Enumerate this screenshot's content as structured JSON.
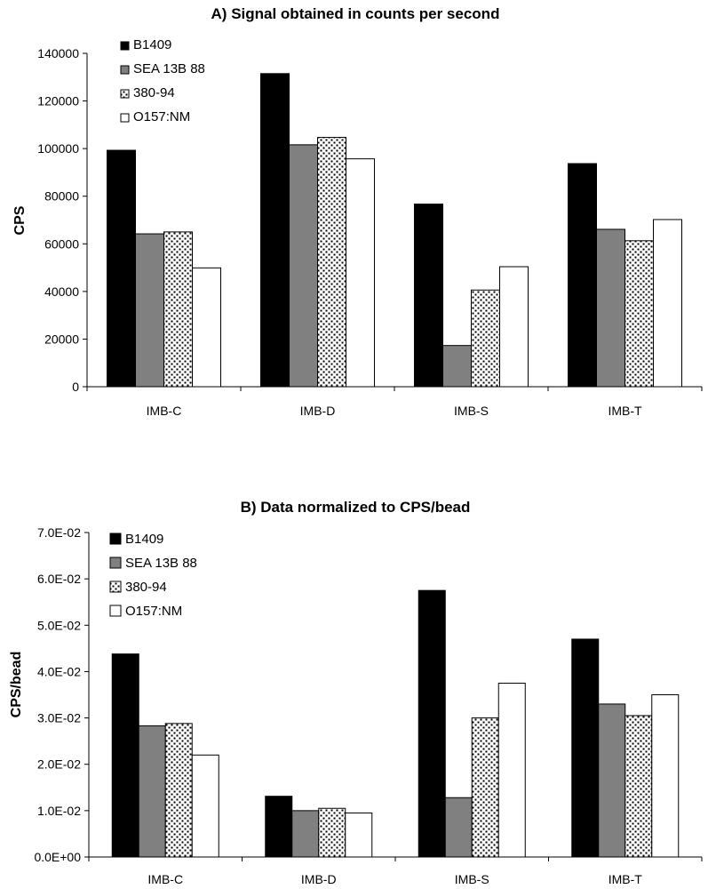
{
  "chart_data": [
    {
      "type": "bar",
      "title": "A) Signal obtained in counts per second",
      "xlabel": "",
      "ylabel": "CPS",
      "ylim": [
        0,
        140000
      ],
      "yticks": [
        0,
        20000,
        40000,
        60000,
        80000,
        100000,
        120000,
        140000
      ],
      "ytick_labels": [
        "0",
        "20000",
        "40000",
        "60000",
        "80000",
        "100000",
        "120000",
        "140000"
      ],
      "categories": [
        "IMB-C",
        "IMB-D",
        "IMB-S",
        "IMB-T"
      ],
      "legend_position": "top-left",
      "series": [
        {
          "name": "B1409",
          "style": "solid-black",
          "values": [
            99300,
            131500,
            76700,
            93700
          ]
        },
        {
          "name": "SEA 13B 88",
          "style": "solid-gray",
          "values": [
            64200,
            101600,
            17300,
            66100
          ]
        },
        {
          "name": "380-94",
          "style": "dotted",
          "values": [
            65000,
            104700,
            40600,
            61300
          ]
        },
        {
          "name": "O157:NM",
          "style": "white",
          "values": [
            49900,
            95700,
            50400,
            70200
          ]
        }
      ]
    },
    {
      "type": "bar",
      "title": "B) Data normalized to CPS/bead",
      "xlabel": "",
      "ylabel": "CPS/bead",
      "ylim": [
        0,
        0.07
      ],
      "yticks": [
        0,
        0.01,
        0.02,
        0.03,
        0.04,
        0.05,
        0.06,
        0.07
      ],
      "ytick_labels": [
        "0.0E+00",
        "1.0E-02",
        "2.0E-02",
        "3.0E-02",
        "4.0E-02",
        "5.0E-02",
        "6.0E-02",
        "7.0E-02"
      ],
      "categories": [
        "IMB-C",
        "IMB-D",
        "IMB-S",
        "IMB-T"
      ],
      "legend_position": "top-left",
      "series": [
        {
          "name": "B1409",
          "style": "solid-black",
          "values": [
            0.0438,
            0.0131,
            0.0575,
            0.047
          ]
        },
        {
          "name": "SEA 13B 88",
          "style": "solid-gray",
          "values": [
            0.0283,
            0.01,
            0.0128,
            0.033
          ]
        },
        {
          "name": "380-94",
          "style": "dotted",
          "values": [
            0.0288,
            0.0105,
            0.03,
            0.0305
          ]
        },
        {
          "name": "O157:NM",
          "style": "white",
          "values": [
            0.022,
            0.0095,
            0.0375,
            0.035
          ]
        }
      ]
    }
  ],
  "colors": {
    "solid-black": "#000000",
    "solid-gray": "#808080",
    "white": "#ffffff",
    "dot-bg": "#ffffff",
    "dot-fg": "#000000",
    "axis": "#000000"
  }
}
